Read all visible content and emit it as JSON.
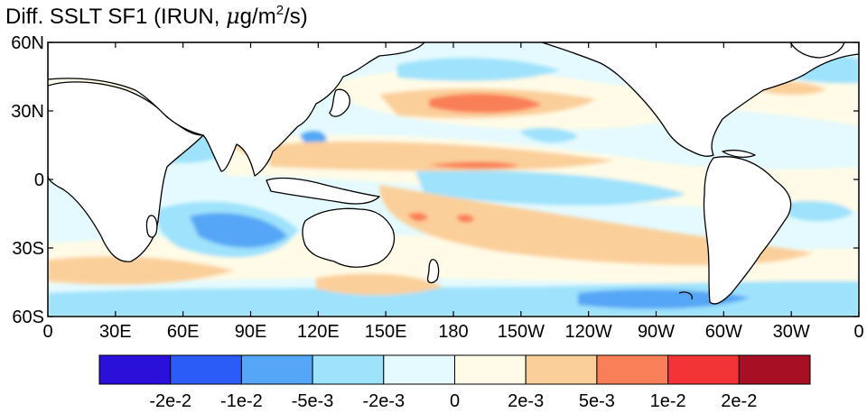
{
  "title": {
    "prefix": "Diff. SSLT SF1 (IRUN, ",
    "mu": "μ",
    "unit_base": "g/m",
    "unit_sup": "2",
    "unit_tail": "/s)"
  },
  "map": {
    "lon_range": [
      0,
      360
    ],
    "lat_range": [
      -60,
      60
    ],
    "lon_ticks": [
      {
        "lon": 0,
        "label": "0"
      },
      {
        "lon": 30,
        "label": "30E"
      },
      {
        "lon": 60,
        "label": "60E"
      },
      {
        "lon": 90,
        "label": "90E"
      },
      {
        "lon": 120,
        "label": "120E"
      },
      {
        "lon": 150,
        "label": "150E"
      },
      {
        "lon": 180,
        "label": "180"
      },
      {
        "lon": 210,
        "label": "150W"
      },
      {
        "lon": 240,
        "label": "120W"
      },
      {
        "lon": 270,
        "label": "90W"
      },
      {
        "lon": 300,
        "label": "60W"
      },
      {
        "lon": 330,
        "label": "30W"
      },
      {
        "lon": 360,
        "label": "0"
      }
    ],
    "lat_ticks": [
      {
        "lat": 60,
        "label": "60N"
      },
      {
        "lat": 30,
        "label": "30N"
      },
      {
        "lat": 0,
        "label": "0"
      },
      {
        "lat": -30,
        "label": "30S"
      },
      {
        "lat": -60,
        "label": "60S"
      }
    ]
  },
  "colorbar": {
    "colors": [
      "#2a10d8",
      "#2c5cf7",
      "#55a6f6",
      "#9fe2fb",
      "#e4fafe",
      "#fffbe6",
      "#fbcf9a",
      "#f97f56",
      "#f23436",
      "#a70f25"
    ],
    "labels": [
      "-2e-2",
      "-1e-2",
      "-5e-3",
      "-2e-3",
      "0",
      "2e-3",
      "5e-3",
      "1e-2",
      "2e-2"
    ]
  }
}
